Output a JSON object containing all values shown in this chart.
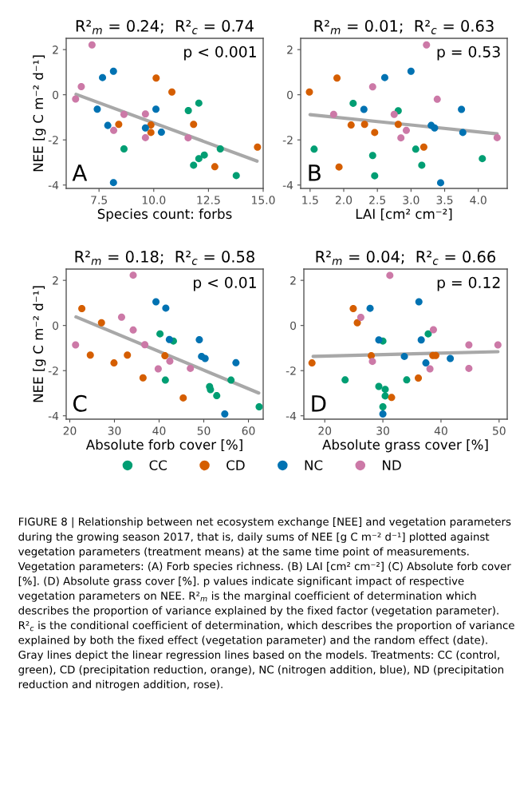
{
  "chart_data": [
    {
      "type": "scatter",
      "title": "R²$_{m}$ = 0.24;  R²$_{c}$ = 0.74",
      "xlabel": "Species count: forbs",
      "ylabel": "NEE [g C m⁻² d⁻¹]",
      "marker": "circle",
      "xlim": [
        6.0,
        15.0
      ],
      "ylim": [
        -4.15,
        2.5
      ],
      "xticks": [
        {
          "value": 7.5,
          "label": "7.5"
        },
        {
          "value": 10,
          "label": "10.0"
        },
        {
          "value": 12.5,
          "label": "12.5"
        },
        {
          "value": 15,
          "label": "15.0"
        }
      ],
      "yticks": [
        -4,
        -2,
        0,
        2
      ],
      "annotations": [
        "p < 0.001",
        "A"
      ],
      "series": [
        {
          "color": "#009e73",
          "x": [
            12.06,
            11.58,
            8.64,
            13.04,
            12.31,
            12.06,
            11.82,
            13.77
          ],
          "values": [
            -0.37,
            -0.7,
            -2.4,
            -2.4,
            -2.67,
            -2.83,
            -3.12,
            -3.58
          ]
        },
        {
          "color": "#d55e00",
          "x": [
            10.11,
            10.83,
            8.4,
            9.87,
            9.87,
            11.82,
            14.74,
            12.79
          ],
          "values": [
            0.74,
            0.12,
            -1.31,
            -1.34,
            -1.67,
            -1.31,
            -2.32,
            -3.19
          ]
        },
        {
          "color": "#0072b2",
          "x": [
            8.16,
            7.66,
            7.42,
            7.9,
            8.16,
            10.1,
            9.62,
            10.35
          ],
          "values": [
            1.04,
            0.76,
            -0.64,
            -1.36,
            -3.89,
            -0.64,
            -1.47,
            -1.66
          ]
        },
        {
          "color": "#cc79a7",
          "x": [
            7.18,
            6.69,
            6.43,
            8.64,
            8.17,
            9.62,
            9.62,
            11.57
          ],
          "values": [
            2.21,
            0.36,
            -0.19,
            -0.87,
            -1.58,
            -0.85,
            -1.9,
            -1.91
          ]
        },
        {
          "type": "line",
          "marker": "none",
          "color": "#999999",
          "x": [
            6.45,
            14.72
          ],
          "values": [
            0.02,
            -2.94
          ]
        }
      ]
    },
    {
      "type": "scatter",
      "title": "R²$_{m}$ = 0.01;  R²$_{c}$ = 0.63",
      "xlabel": "LAI [cm² cm⁻²]",
      "marker": "circle",
      "xlim": [
        1.36,
        4.43
      ],
      "ylim": [
        -4.15,
        2.5
      ],
      "xticks": [
        1.5,
        {
          "value": 2,
          "label": "2.0"
        },
        2.5,
        {
          "value": 3,
          "label": "3.0"
        },
        3.5,
        {
          "value": 4,
          "label": "4.0"
        }
      ],
      "yticks": [
        -4,
        -2,
        0,
        2
      ],
      "annotations": [
        "p = 0.53",
        "B"
      ],
      "series": [
        {
          "color": "#009e73",
          "x": [
            2.14,
            2.81,
            1.56,
            2.43,
            2.46,
            3.07,
            3.16,
            4.06
          ],
          "values": [
            -0.38,
            -0.71,
            -2.41,
            -2.69,
            -3.59,
            -2.41,
            -3.12,
            -2.83
          ]
        },
        {
          "color": "#d55e00",
          "x": [
            1.49,
            1.9,
            1.93,
            2.11,
            2.31,
            2.46,
            2.81,
            3.19
          ],
          "values": [
            0.12,
            0.74,
            -3.2,
            -1.34,
            -1.31,
            -1.67,
            -1.31,
            -2.32
          ]
        },
        {
          "color": "#0072b2",
          "x": [
            2.61,
            3.0,
            2.3,
            3.3,
            3.35,
            3.75,
            3.77,
            3.44
          ],
          "values": [
            0.76,
            1.04,
            -0.65,
            -1.36,
            -1.47,
            -0.65,
            -1.67,
            -3.9
          ]
        },
        {
          "color": "#cc79a7",
          "x": [
            3.23,
            2.43,
            1.85,
            2.75,
            2.93,
            2.85,
            3.39,
            4.28
          ],
          "values": [
            2.21,
            0.35,
            -0.87,
            -0.87,
            -1.58,
            -1.91,
            -0.2,
            -1.9
          ]
        },
        {
          "type": "line",
          "marker": "none",
          "color": "#999999",
          "x": [
            1.5,
            4.28
          ],
          "values": [
            -0.88,
            -1.73
          ]
        }
      ]
    },
    {
      "type": "scatter",
      "title": "R²$_{m}$ = 0.18;  R²$_{c}$ = 0.58",
      "xlabel": "Absolute forb cover [%]",
      "ylabel": "NEE [g C m⁻² d⁻¹]",
      "marker": "circle",
      "xlim": [
        19.2,
        63.3
      ],
      "ylim": [
        -4.15,
        2.5
      ],
      "xticks": [
        20,
        30,
        40,
        50,
        60
      ],
      "yticks": [
        -4,
        -2,
        0,
        2
      ],
      "annotations": [
        "p < 0.01",
        "C"
      ],
      "series": [
        {
          "color": "#009e73",
          "x": [
            40.2,
            43.2,
            41.4,
            56.1,
            51.3,
            51.5,
            52.9,
            62.4
          ],
          "values": [
            -0.37,
            -0.69,
            -2.42,
            -2.42,
            -2.71,
            -2.84,
            -3.11,
            -3.6
          ]
        },
        {
          "color": "#d55e00",
          "x": [
            22.7,
            27.1,
            24.6,
            32.9,
            29.9,
            36.4,
            41.3,
            45.4
          ],
          "values": [
            0.75,
            0.12,
            -1.31,
            -1.31,
            -1.66,
            -2.32,
            -1.34,
            -3.21
          ]
        },
        {
          "color": "#0072b2",
          "x": [
            39.3,
            41.5,
            42.3,
            49.0,
            49.5,
            50.3,
            57.2,
            54.7
          ],
          "values": [
            1.05,
            0.77,
            -0.62,
            -0.63,
            -1.37,
            -1.46,
            -1.65,
            -3.92
          ]
        },
        {
          "color": "#cc79a7",
          "x": [
            34.2,
            31.6,
            34.2,
            21.3,
            36.8,
            42.4,
            39.8,
            47.0
          ],
          "values": [
            2.23,
            0.37,
            -0.2,
            -0.86,
            -0.85,
            -1.58,
            -1.92,
            -1.9
          ]
        },
        {
          "type": "line",
          "marker": "none",
          "color": "#999999",
          "x": [
            21.4,
            62.3
          ],
          "values": [
            0.38,
            -2.99
          ]
        }
      ]
    },
    {
      "type": "scatter",
      "title": "R²$_{m}$ = 0.04;  R²$_{c}$ = 0.66",
      "xlabel": "Absolute grass cover [%]",
      "marker": "circle",
      "legend": "bottom",
      "xlim": [
        16.4,
        51.4
      ],
      "ylim": [
        -4.15,
        2.5
      ],
      "xticks": [
        20,
        30,
        40,
        50
      ],
      "yticks": [
        -4,
        -2,
        0,
        2
      ],
      "annotations": [
        "p = 0.12",
        "D",
        "FIGURE 8 | Relationship between net ecosystem exchange [NEE] and vegetation parameters during the growing season 2017, that is, daily sums of NEE [g C m⁻² d⁻¹] plotted against vegetation parameters (treatment means) at the same time point of measurements. Vegetation parameters: (A) Forb species richness. (B) LAI [cm² cm⁻²] (C) Absolute forb cover [%]. (D) Absolute grass cover [%]. p values indicate significant impact of respective vegetation parameters on NEE. R²$_{m}$ is the marginal coefficient of determination which describes the proportion of variance explained by the fixed factor (vegetation parameter). R²$_{c}$ is the conditional coefficient of determination, which describes the proportion of variance explained by both the fixed effect (vegetation parameter) and the random effect (date). Gray lines depict the linear regression lines based on the models. Treatments: CC (control, green), CD (precipitation reduction, orange), NC (nitrogen addition, blue), ND (precipitation reduction and nitrogen addition, rose)."
      ],
      "series": [
        {
          "name": "CC",
          "color": "#009e73",
          "x": [
            37.8,
            30.0,
            23.5,
            34.1,
            29.3,
            30.4,
            30.4,
            30.0
          ],
          "values": [
            -0.37,
            -0.69,
            -2.41,
            -2.41,
            -2.7,
            -2.83,
            -3.12,
            -3.6
          ]
        },
        {
          "name": "CD",
          "color": "#d55e00",
          "x": [
            24.9,
            25.6,
            28.0,
            17.8,
            38.6,
            39.1,
            36.1,
            31.5
          ],
          "values": [
            0.75,
            0.12,
            -1.34,
            -1.66,
            -1.33,
            -1.33,
            -2.33,
            -3.19
          ]
        },
        {
          "name": "NC",
          "color": "#0072b2",
          "x": [
            27.8,
            36.2,
            29.3,
            36.6,
            33.7,
            37.4,
            41.6,
            30.0
          ],
          "values": [
            0.76,
            1.05,
            -0.64,
            -0.64,
            -1.37,
            -1.66,
            -1.46,
            -3.92
          ]
        },
        {
          "name": "ND",
          "color": "#cc79a7",
          "x": [
            31.2,
            26.2,
            38.7,
            28.2,
            38.1,
            44.8,
            44.8,
            49.8
          ],
          "values": [
            2.22,
            0.36,
            -0.19,
            -1.59,
            -1.92,
            -0.86,
            -1.9,
            -0.86
          ]
        },
        {
          "type": "line",
          "marker": "none",
          "color": "#999999",
          "x": [
            18.0,
            49.8
          ],
          "values": [
            -1.37,
            -1.16
          ]
        }
      ]
    }
  ]
}
